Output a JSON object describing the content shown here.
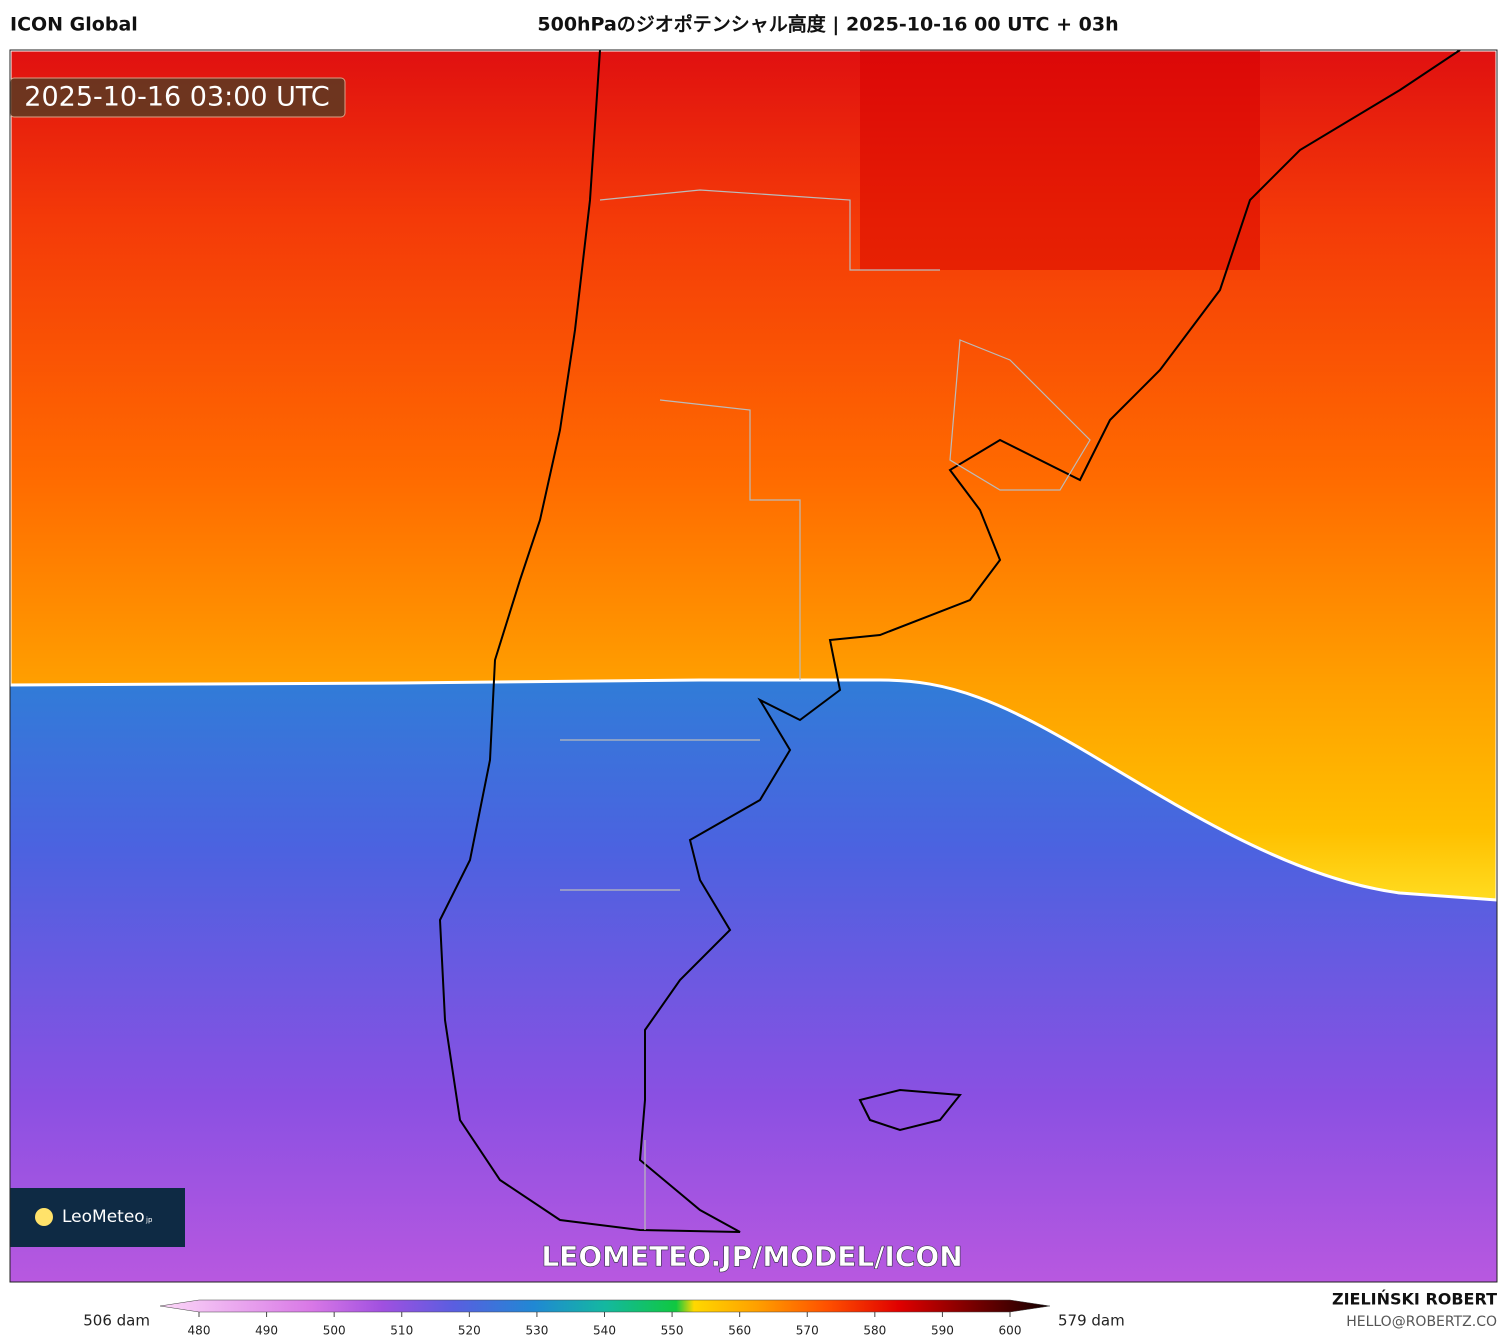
{
  "header": {
    "model": "ICON Global",
    "title": "500hPaのジオポテンシャル高度 | 2025-10-16 00 UTC + 03h"
  },
  "map": {
    "timestamp": "2025-10-16 03:00 UTC",
    "watermark": "LEOMETEO.JP/MODEL/ICON",
    "logo": {
      "brand": "LeoMeteo",
      "suffix": "jp"
    }
  },
  "colorbar": {
    "min_label": "506 dam",
    "max_label": "579 dam",
    "range": [
      480,
      600
    ],
    "ticks": [
      480,
      490,
      500,
      510,
      520,
      530,
      540,
      550,
      560,
      570,
      580,
      590,
      600
    ]
  },
  "footer": {
    "author": "ZIELIŃSKI ROBERT",
    "contact": "HELLO@ROBERTZ.CO"
  }
}
